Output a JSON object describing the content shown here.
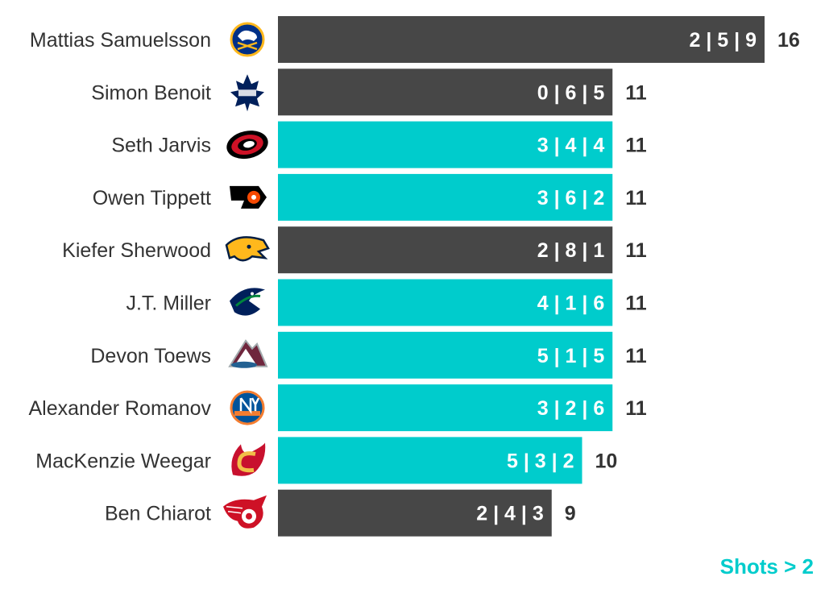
{
  "chart_data": {
    "type": "bar",
    "orientation": "horizontal",
    "categories": [
      "Mattias Samuelsson",
      "Simon Benoit",
      "Seth Jarvis",
      "Owen Tippett",
      "Kiefer Sherwood",
      "J.T. Miller",
      "Devon Toews",
      "Alexander Romanov",
      "MacKenzie Weegar",
      "Ben Chiarot"
    ],
    "teams": [
      "buffalo-sabres-logo-icon",
      "toronto-maple-leafs-logo-icon",
      "carolina-hurricanes-logo-icon",
      "philadelphia-flyers-logo-icon",
      "nashville-predators-logo-icon",
      "vancouver-canucks-logo-icon",
      "colorado-avalanche-logo-icon",
      "new-york-islanders-logo-icon",
      "calgary-flames-logo-icon",
      "detroit-red-wings-logo-icon"
    ],
    "values": [
      16,
      11,
      11,
      11,
      11,
      11,
      11,
      11,
      10,
      9
    ],
    "inner_labels": [
      "2 | 5 | 9",
      "0 | 6 | 5",
      "3 | 4 | 4",
      "3 | 6 | 2",
      "2 | 8 | 1",
      "4 | 1 | 6",
      "5 | 1 | 5",
      "3 | 2 | 6",
      "5 | 3 | 2",
      "2 | 4 | 3"
    ],
    "highlight": [
      false,
      false,
      true,
      true,
      false,
      true,
      true,
      true,
      true,
      false
    ],
    "colors": {
      "default": "#474747",
      "highlight": "#00cccc",
      "bar_text": "#ffffff",
      "value_text": "#333333",
      "name_text": "#333333"
    },
    "xlim": [
      0,
      16
    ]
  },
  "footnote": {
    "text": "Shots > 2",
    "color": "#00cccc"
  }
}
